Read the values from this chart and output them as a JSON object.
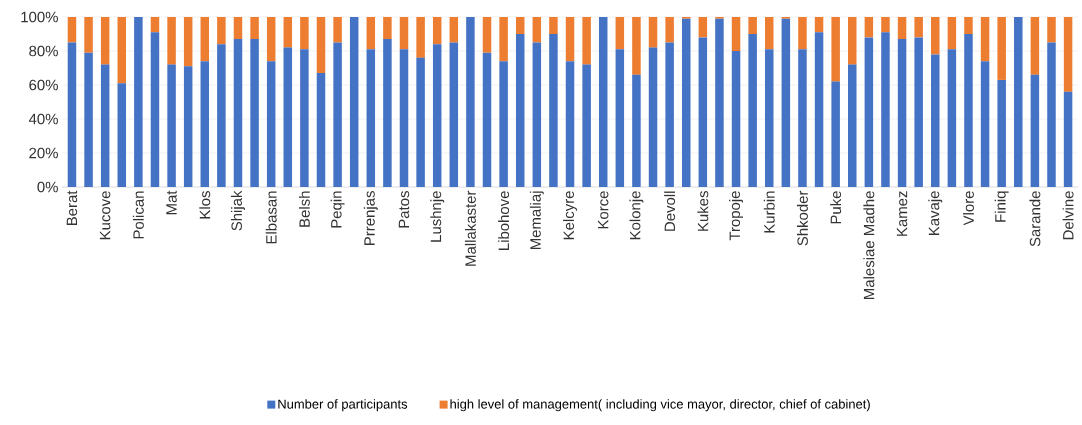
{
  "chart_data": {
    "type": "bar",
    "stacked": true,
    "categories": [
      "Berat",
      null,
      "Kucove",
      null,
      "Polican",
      null,
      "Mat",
      null,
      "Klos",
      null,
      "Shijak",
      null,
      "Elbasan",
      null,
      "Belsh",
      null,
      "Peqin",
      null,
      "Prrenjas",
      null,
      "Patos",
      null,
      "Lushnje",
      null,
      "Mallakaster",
      null,
      "Libohove",
      null,
      "Memaliaj",
      null,
      "Kelcyre",
      null,
      "Korce",
      null,
      "Kolonje",
      null,
      "Devoll",
      null,
      "Kukes",
      null,
      "Tropoje",
      null,
      "Kurbin",
      null,
      "Shkoder",
      null,
      "Puke",
      null,
      "Malesiae Madhe",
      null,
      "Kamez",
      null,
      "Kavaje",
      null,
      "Vlore",
      null,
      "Finiq",
      null,
      "Sarande",
      null,
      "Delvine"
    ],
    "series": [
      {
        "name": "Number of participants",
        "color": "#4472c4",
        "values": [
          85,
          79,
          72,
          61,
          100,
          91,
          72,
          71,
          74,
          84,
          87,
          87,
          74,
          82,
          81,
          67,
          85,
          100,
          81,
          87,
          81,
          76,
          84,
          85,
          100,
          79,
          74,
          90,
          85,
          90,
          74,
          72,
          100,
          81,
          66,
          82,
          85,
          99,
          88,
          99,
          80,
          90,
          81,
          99,
          81,
          91,
          62,
          72,
          88,
          91,
          87,
          88,
          78,
          81,
          90,
          74,
          63,
          100,
          66,
          85,
          56
        ]
      },
      {
        "name": "high level of management( including vice mayor, director, chief of cabinet)",
        "color": "#ed7d31",
        "values": [
          15,
          21,
          28,
          39,
          0,
          9,
          28,
          29,
          26,
          16,
          13,
          13,
          26,
          18,
          19,
          33,
          15,
          0,
          19,
          13,
          19,
          24,
          16,
          15,
          0,
          21,
          26,
          10,
          15,
          10,
          26,
          28,
          0,
          19,
          34,
          18,
          15,
          1,
          12,
          1,
          20,
          10,
          19,
          1,
          19,
          9,
          38,
          28,
          12,
          9,
          13,
          12,
          22,
          19,
          10,
          26,
          37,
          0,
          34,
          15,
          44
        ]
      }
    ],
    "ylim": [
      0,
      100
    ],
    "yticks": [
      {
        "value": 0,
        "label": "0%"
      },
      {
        "value": 20,
        "label": "20%"
      },
      {
        "value": 40,
        "label": "40%"
      },
      {
        "value": 60,
        "label": "60%"
      },
      {
        "value": 80,
        "label": "80%"
      },
      {
        "value": 100,
        "label": "100%"
      }
    ],
    "grid": "y",
    "legend": "bottom"
  }
}
